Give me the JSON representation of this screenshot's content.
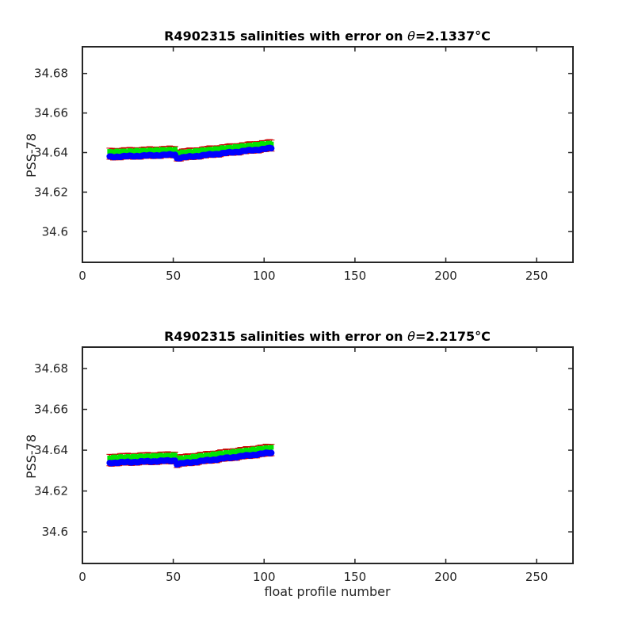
{
  "chart_data": [
    {
      "type": "line",
      "title_prefix": "R4902315 salinities with error on ",
      "title_theta": "θ",
      "title_value": "=2.1337",
      "title_unit": "°C",
      "xlabel": "",
      "ylabel": "PSS-78",
      "xlim": [
        0,
        270
      ],
      "ylim": [
        34.5845,
        34.6935
      ],
      "xticks": [
        0,
        50,
        100,
        150,
        200,
        250
      ],
      "yticks": [
        34.6,
        34.62,
        34.64,
        34.66,
        34.68
      ],
      "xticklabels": [
        "0",
        "50",
        "100",
        "150",
        "200",
        "250"
      ],
      "yticklabels": [
        "34.6",
        "34.62",
        "34.64",
        "34.66",
        "34.68"
      ],
      "grid": false,
      "x_start": 15,
      "x_end": 104,
      "y_start": 34.6378,
      "y_end": 34.6422,
      "drop_at": 52,
      "drop_to": 34.6372,
      "green_offset": 0.0025,
      "error_half_width": 0.0028,
      "colors": {
        "mapped": "#0000ff",
        "calibrated": "#00e600",
        "error": "#cc0000"
      }
    },
    {
      "type": "line",
      "title_prefix": "R4902315 salinities with error on ",
      "title_theta": "θ",
      "title_value": "=2.2175",
      "title_unit": "°C",
      "xlabel": "float profile number",
      "ylabel": "PSS-78",
      "xlim": [
        0,
        270
      ],
      "ylim": [
        34.5845,
        34.6905
      ],
      "xticks": [
        0,
        50,
        100,
        150,
        200,
        250
      ],
      "yticks": [
        34.6,
        34.62,
        34.64,
        34.66,
        34.68
      ],
      "xticklabels": [
        "0",
        "50",
        "100",
        "150",
        "200",
        "250"
      ],
      "yticklabels": [
        "34.6",
        "34.62",
        "34.64",
        "34.66",
        "34.68"
      ],
      "grid": false,
      "x_start": 15,
      "x_end": 104,
      "y_start": 34.6338,
      "y_end": 34.6388,
      "drop_at": 52,
      "drop_to": 34.6332,
      "green_offset": 0.0025,
      "error_half_width": 0.0028,
      "colors": {
        "mapped": "#0000ff",
        "calibrated": "#00e600",
        "error": "#cc0000"
      }
    }
  ]
}
